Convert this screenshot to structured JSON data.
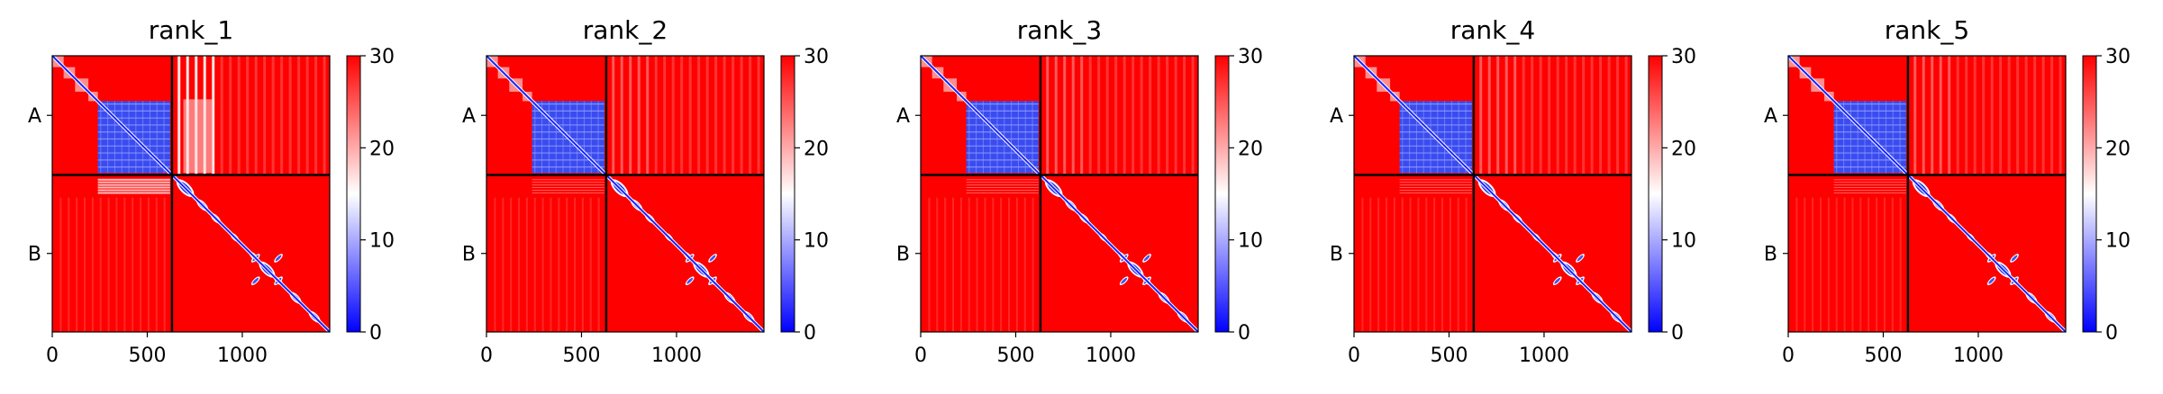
{
  "chart_data": [
    {
      "type": "heatmap",
      "title": "rank_1",
      "chains": [
        "A",
        "B"
      ],
      "chain_boundary": 630,
      "total_length": 1460,
      "x_ticks": [
        0,
        500,
        1000
      ],
      "x_tick_labels": [
        "0",
        "500",
        "1000"
      ],
      "colorbar": {
        "min": 0,
        "max": 30,
        "ticks": [
          0,
          10,
          20,
          30
        ],
        "tick_labels": [
          "0",
          "10",
          "20",
          "30"
        ],
        "colors": [
          "#0000ff",
          "#ffffff",
          "#ff0000"
        ]
      }
    },
    {
      "type": "heatmap",
      "title": "rank_2",
      "chains": [
        "A",
        "B"
      ],
      "chain_boundary": 630,
      "total_length": 1460,
      "x_ticks": [
        0,
        500,
        1000
      ],
      "x_tick_labels": [
        "0",
        "500",
        "1000"
      ],
      "colorbar": {
        "min": 0,
        "max": 30,
        "ticks": [
          0,
          10,
          20,
          30
        ],
        "tick_labels": [
          "0",
          "10",
          "20",
          "30"
        ],
        "colors": [
          "#0000ff",
          "#ffffff",
          "#ff0000"
        ]
      }
    },
    {
      "type": "heatmap",
      "title": "rank_3",
      "chains": [
        "A",
        "B"
      ],
      "chain_boundary": 630,
      "total_length": 1460,
      "x_ticks": [
        0,
        500,
        1000
      ],
      "x_tick_labels": [
        "0",
        "500",
        "1000"
      ],
      "colorbar": {
        "min": 0,
        "max": 30,
        "ticks": [
          0,
          10,
          20,
          30
        ],
        "tick_labels": [
          "0",
          "10",
          "20",
          "30"
        ],
        "colors": [
          "#0000ff",
          "#ffffff",
          "#ff0000"
        ]
      }
    },
    {
      "type": "heatmap",
      "title": "rank_4",
      "chains": [
        "A",
        "B"
      ],
      "chain_boundary": 630,
      "total_length": 1460,
      "x_ticks": [
        0,
        500,
        1000
      ],
      "x_tick_labels": [
        "0",
        "500",
        "1000"
      ],
      "colorbar": {
        "min": 0,
        "max": 30,
        "ticks": [
          0,
          10,
          20,
          30
        ],
        "tick_labels": [
          "0",
          "10",
          "20",
          "30"
        ],
        "colors": [
          "#0000ff",
          "#ffffff",
          "#ff0000"
        ]
      }
    },
    {
      "type": "heatmap",
      "title": "rank_5",
      "chains": [
        "A",
        "B"
      ],
      "chain_boundary": 630,
      "total_length": 1460,
      "x_ticks": [
        0,
        500,
        1000
      ],
      "x_tick_labels": [
        "0",
        "500",
        "1000"
      ],
      "colorbar": {
        "min": 0,
        "max": 30,
        "ticks": [
          0,
          10,
          20,
          30
        ],
        "tick_labels": [
          "0",
          "10",
          "20",
          "30"
        ],
        "colors": [
          "#0000ff",
          "#ffffff",
          "#ff0000"
        ]
      }
    }
  ]
}
